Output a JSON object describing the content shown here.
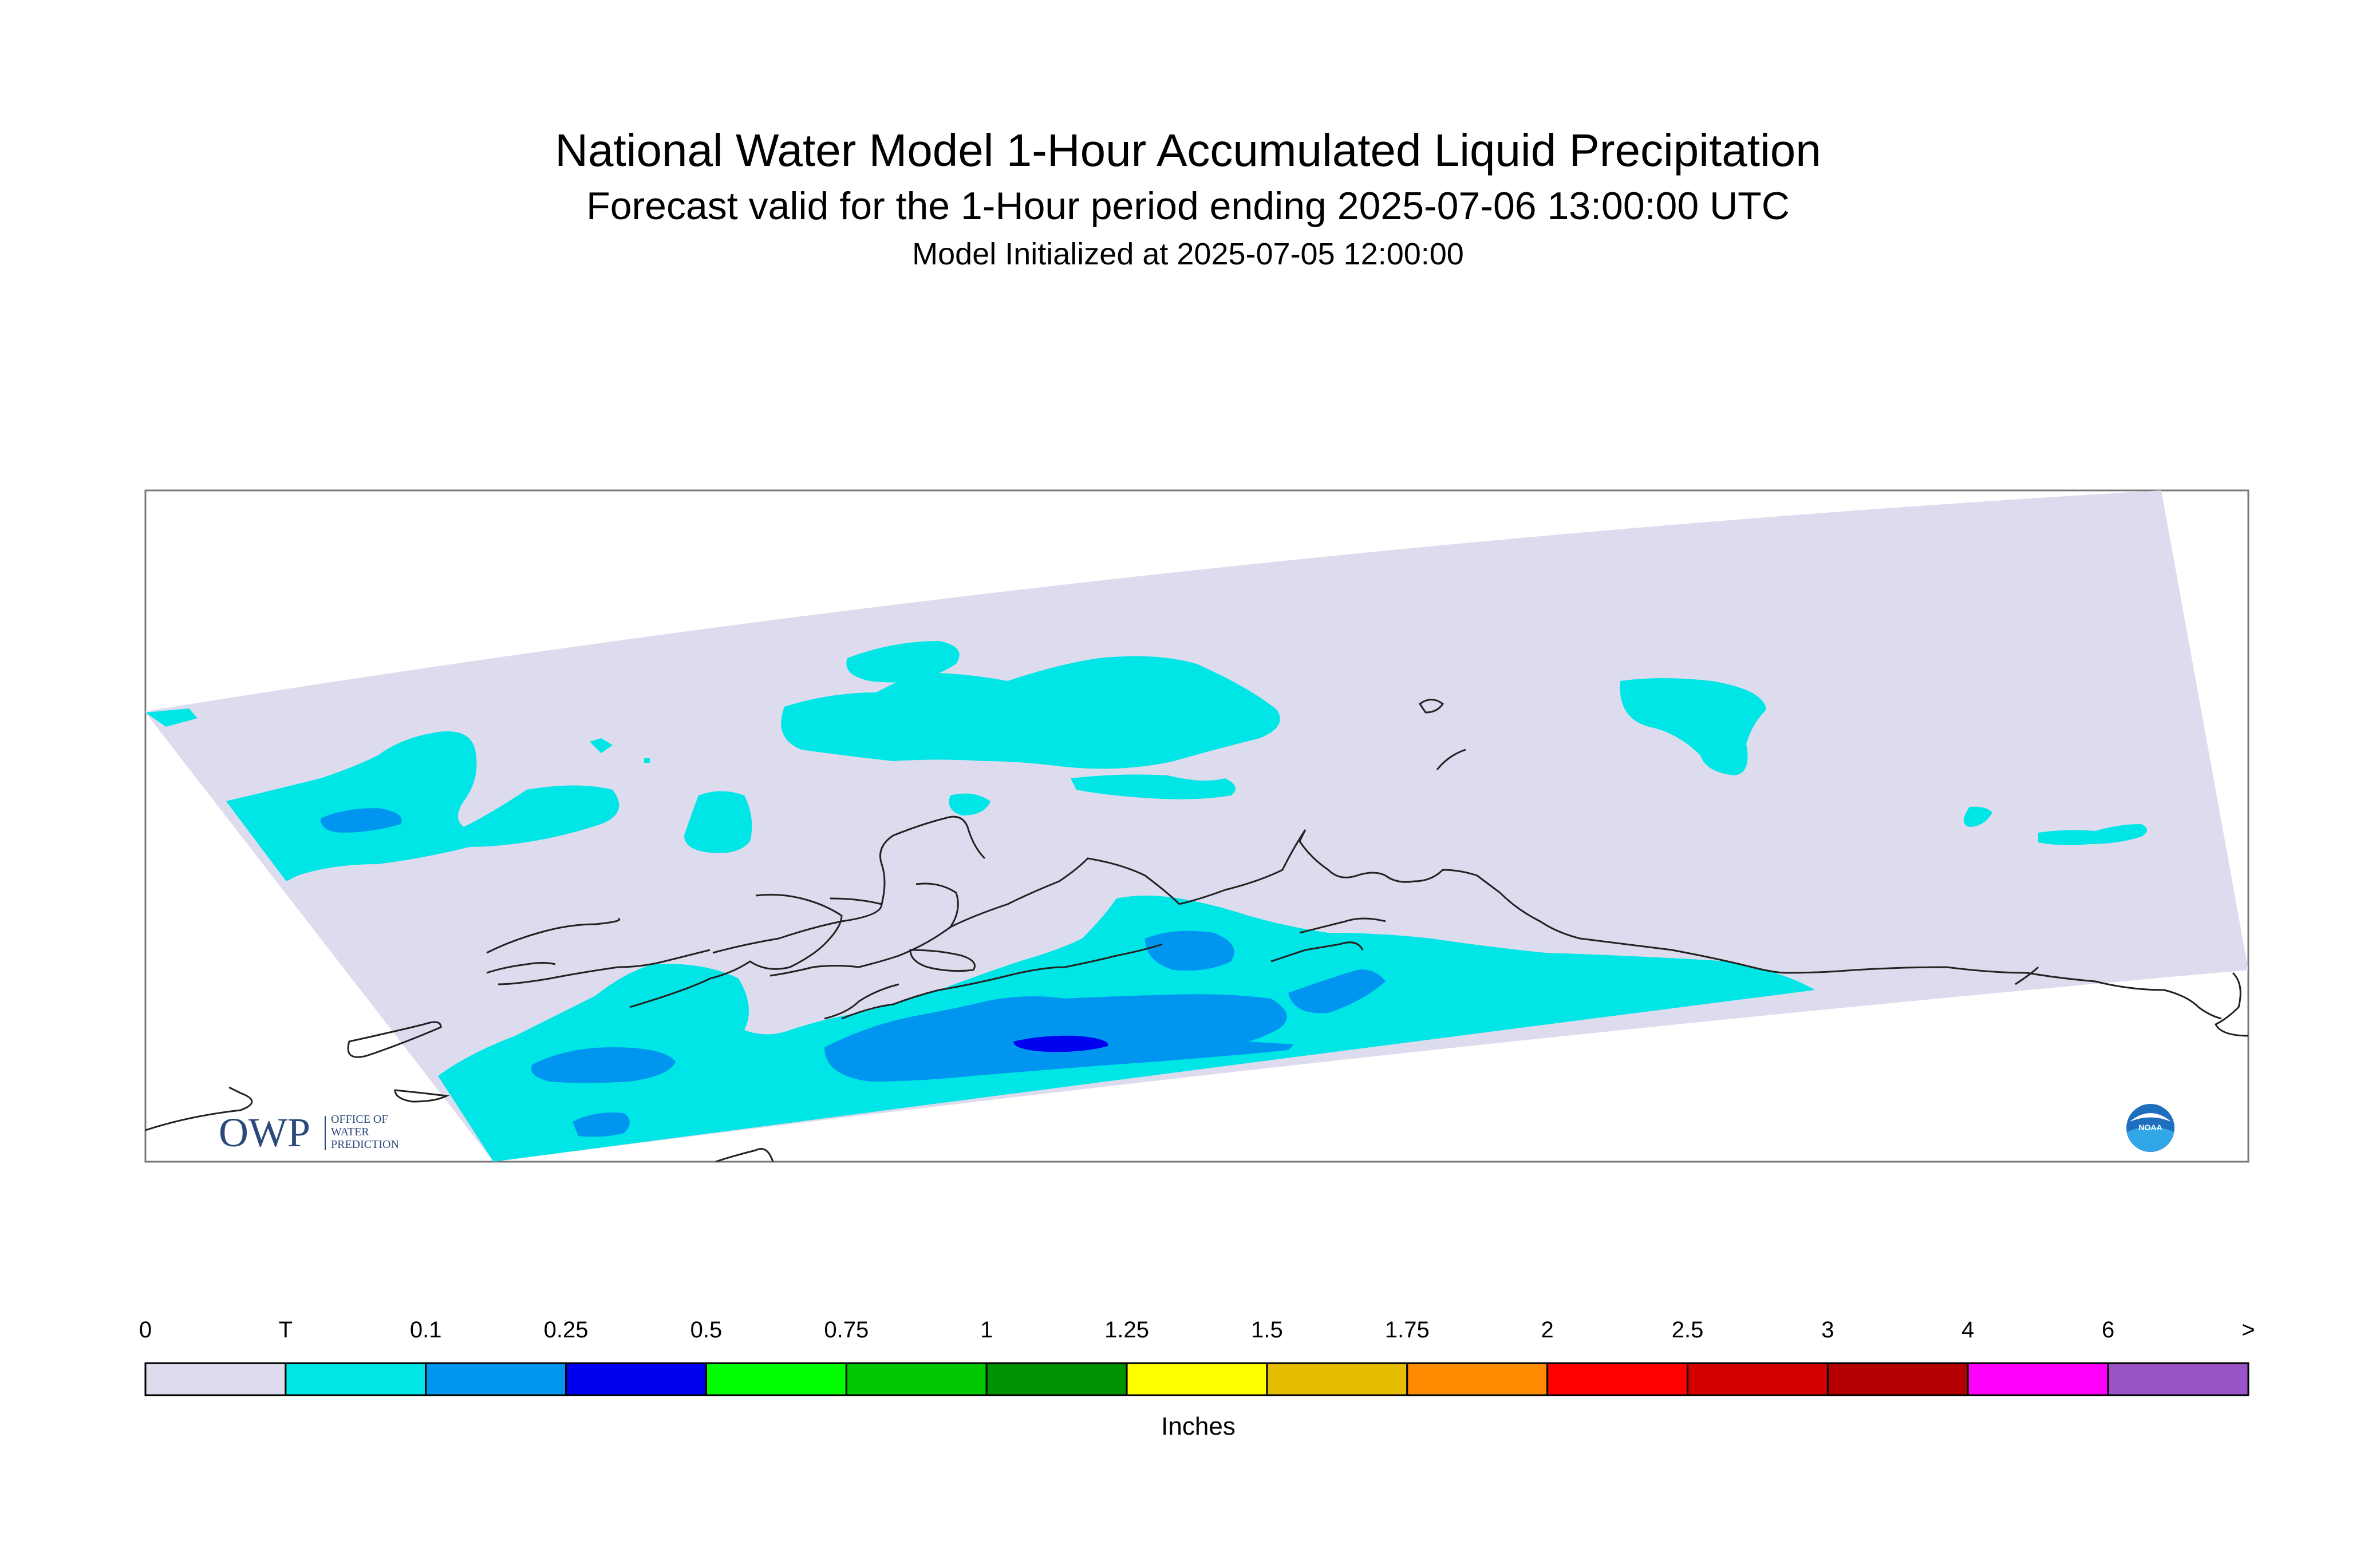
{
  "title": "National Water Model 1-Hour Accumulated Liquid Precipitation",
  "subtitle": "Forecast valid for the 1-Hour period ending 2025-07-06 13:00:00 UTC",
  "init_line": "Model Initialized at 2025-07-05 12:00:00",
  "legend": {
    "units": "Inches",
    "labels": [
      "0",
      "T",
      "0.1",
      "0.25",
      "0.5",
      "0.75",
      "1",
      "1.25",
      "1.5",
      "1.75",
      "2",
      "2.5",
      "3",
      "4",
      "6",
      ">"
    ],
    "colors": [
      "#dcdcee",
      "#00e5e5",
      "#0096f0",
      "#0000f0",
      "#00ff00",
      "#00c800",
      "#009100",
      "#ffff00",
      "#e6be00",
      "#ff8c00",
      "#ff0000",
      "#d20000",
      "#b40000",
      "#ff00ff",
      "#9955c8"
    ]
  },
  "logos": {
    "owp_text": "OWP",
    "owp_sub": [
      "OFFICE OF",
      "WATER",
      "PREDICTION"
    ],
    "noaa_text": "NOAA"
  },
  "colors": {
    "domain": "#dcdcee",
    "trace": "#00e5e5",
    "light_blue": "#0096f0",
    "blue": "#0000f0",
    "coast": "#222222"
  }
}
